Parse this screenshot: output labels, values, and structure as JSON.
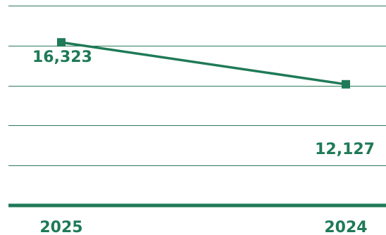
{
  "chart_data": {
    "type": "line",
    "categories": [
      "2025",
      "2024"
    ],
    "series": [
      {
        "values": [
          16323,
          12127
        ],
        "data_labels": [
          "16,323",
          "12,127"
        ]
      }
    ],
    "title": "",
    "xlabel": "",
    "ylabel": "",
    "ylim": [
      0,
      20000
    ],
    "grid": true,
    "legend": "none",
    "colors": {
      "line": "#1f7a58",
      "grid": "#2f7a5c",
      "text": "#1f7a58"
    }
  }
}
